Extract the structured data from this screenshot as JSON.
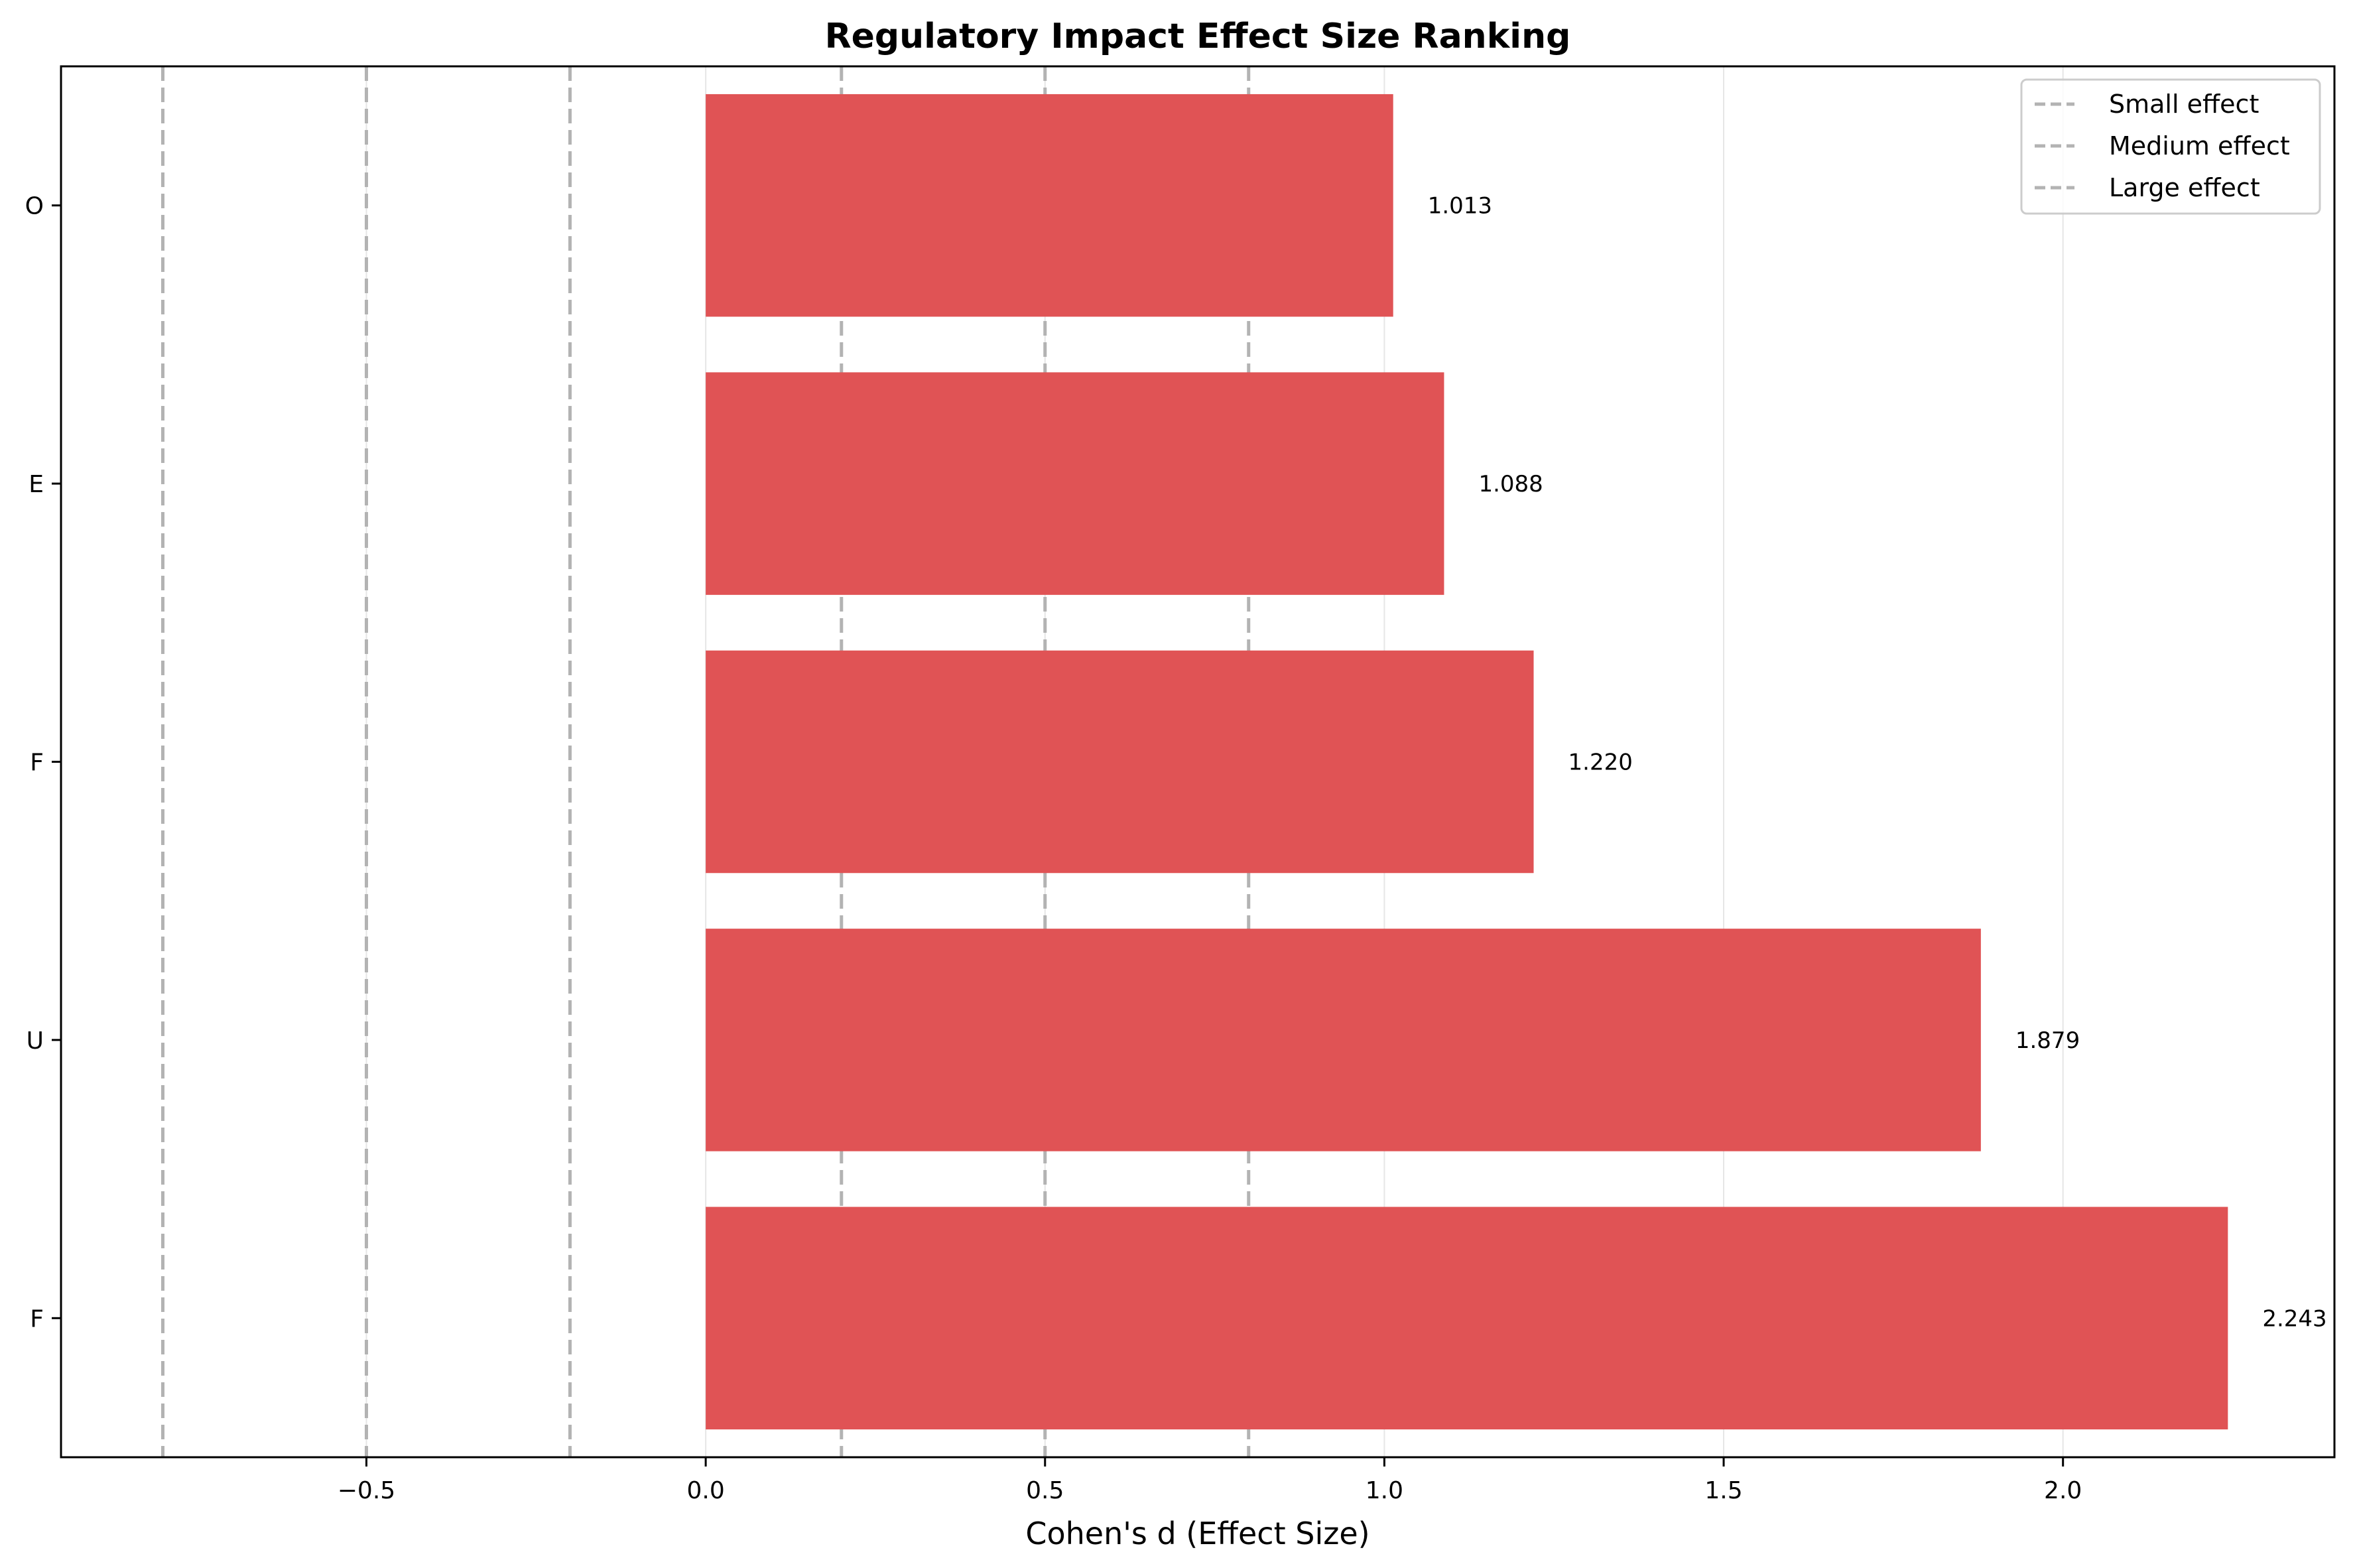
{
  "chart_data": {
    "type": "bar",
    "orientation": "horizontal",
    "title": "Regulatory Impact Effect Size Ranking",
    "xlabel": "Cohen's d (Effect Size)",
    "ylabel": "",
    "xlim": [
      -0.95,
      2.4
    ],
    "xticks": [
      -0.5,
      0.0,
      0.5,
      1.0,
      1.5,
      2.0
    ],
    "xtick_labels": [
      "−0.5",
      "0.0",
      "0.5",
      "1.0",
      "1.5",
      "2.0"
    ],
    "grid": "x",
    "categories": [
      "O",
      "E",
      "F",
      "U",
      "F"
    ],
    "values": [
      1.013,
      1.088,
      1.22,
      1.879,
      2.243
    ],
    "value_labels": [
      "1.013",
      "1.088",
      "1.220",
      "1.879",
      "2.243"
    ],
    "bar_color": "#e05355",
    "reference_lines": [
      {
        "name": "Small effect",
        "values": [
          -0.2,
          0.2
        ]
      },
      {
        "name": "Medium effect",
        "values": [
          -0.5,
          0.5
        ]
      },
      {
        "name": "Large effect",
        "values": [
          -0.8,
          0.8
        ]
      }
    ],
    "reference_line_color": "#b3b3b3",
    "legend": {
      "position": "top-right",
      "entries": [
        "Small effect",
        "Medium effect",
        "Large effect"
      ]
    }
  }
}
